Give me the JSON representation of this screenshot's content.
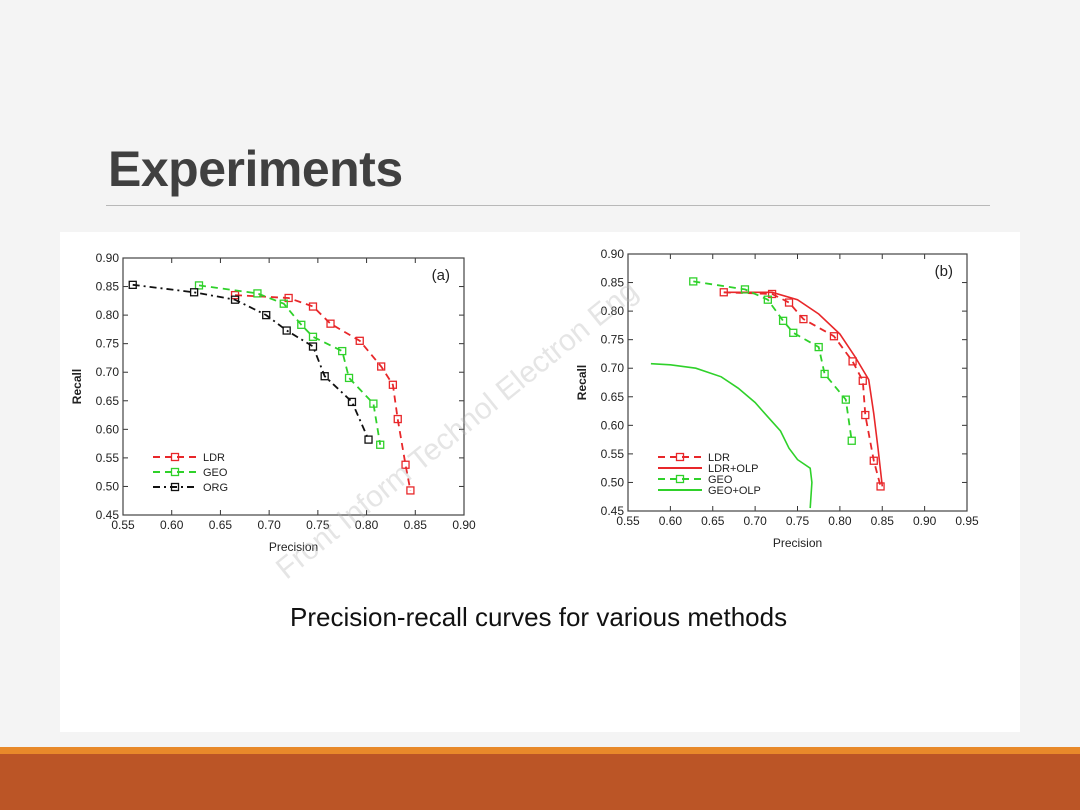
{
  "slide": {
    "title": "Experiments",
    "caption": "Precision-recall curves for various methods",
    "watermark": "Front Inform Technol Electron Eng"
  },
  "colors": {
    "ldr": "#e8272a",
    "geo": "#2fd12a",
    "org": "#111111",
    "footer": "#bb5526",
    "footer_accent": "#e8892a"
  },
  "chart_data": [
    {
      "type": "line",
      "panel_label": "(a)",
      "xlabel": "Precision",
      "ylabel": "Recall",
      "xlim": [
        0.55,
        0.9
      ],
      "ylim": [
        0.45,
        0.9
      ],
      "xticks": [
        "0.55",
        "0.60",
        "0.65",
        "0.70",
        "0.75",
        "0.80",
        "0.85",
        "0.90"
      ],
      "yticks": [
        "0.45",
        "0.50",
        "0.55",
        "0.60",
        "0.65",
        "0.70",
        "0.75",
        "0.80",
        "0.85",
        "0.90"
      ],
      "legend_position": "bottom-left",
      "series": [
        {
          "name": "LDR",
          "color": "#e8272a",
          "dash": "dashed",
          "marker": "square",
          "x": [
            0.665,
            0.72,
            0.745,
            0.763,
            0.793,
            0.815,
            0.827,
            0.832,
            0.84,
            0.845
          ],
          "y": [
            0.835,
            0.83,
            0.815,
            0.785,
            0.755,
            0.71,
            0.678,
            0.618,
            0.538,
            0.493
          ]
        },
        {
          "name": "GEO",
          "color": "#2fd12a",
          "dash": "dashed",
          "marker": "square",
          "x": [
            0.628,
            0.688,
            0.715,
            0.733,
            0.745,
            0.775,
            0.782,
            0.807,
            0.814
          ],
          "y": [
            0.852,
            0.838,
            0.82,
            0.783,
            0.762,
            0.737,
            0.69,
            0.645,
            0.573
          ]
        },
        {
          "name": "ORG",
          "color": "#111111",
          "dash": "dashdot",
          "marker": "square",
          "x": [
            0.56,
            0.623,
            0.665,
            0.697,
            0.718,
            0.745,
            0.757,
            0.785,
            0.802
          ],
          "y": [
            0.853,
            0.84,
            0.827,
            0.8,
            0.773,
            0.745,
            0.693,
            0.648,
            0.582
          ]
        }
      ]
    },
    {
      "type": "line",
      "panel_label": "(b)",
      "xlabel": "Precision",
      "ylabel": "Recall",
      "xlim": [
        0.55,
        0.95
      ],
      "ylim": [
        0.45,
        0.9
      ],
      "xticks": [
        "0.55",
        "0.60",
        "0.65",
        "0.70",
        "0.75",
        "0.80",
        "0.85",
        "0.90",
        "0.95"
      ],
      "yticks": [
        "0.45",
        "0.50",
        "0.55",
        "0.60",
        "0.65",
        "0.70",
        "0.75",
        "0.80",
        "0.85",
        "0.90"
      ],
      "legend_position": "bottom-left",
      "series": [
        {
          "name": "LDR",
          "color": "#e8272a",
          "dash": "dashed",
          "marker": "square",
          "x": [
            0.663,
            0.72,
            0.74,
            0.757,
            0.793,
            0.815,
            0.827,
            0.83,
            0.84,
            0.848
          ],
          "y": [
            0.833,
            0.83,
            0.815,
            0.786,
            0.756,
            0.712,
            0.678,
            0.618,
            0.538,
            0.493
          ]
        },
        {
          "name": "LDR+OLP",
          "color": "#e8272a",
          "dash": "solid",
          "marker": "none",
          "x": [
            0.663,
            0.72,
            0.75,
            0.775,
            0.8,
            0.818,
            0.834,
            0.84,
            0.845,
            0.85
          ],
          "y": [
            0.833,
            0.833,
            0.82,
            0.795,
            0.76,
            0.72,
            0.68,
            0.62,
            0.56,
            0.493
          ]
        },
        {
          "name": "GEO",
          "color": "#2fd12a",
          "dash": "dashed",
          "marker": "square",
          "x": [
            0.627,
            0.688,
            0.715,
            0.733,
            0.745,
            0.775,
            0.782,
            0.807,
            0.814
          ],
          "y": [
            0.852,
            0.838,
            0.82,
            0.783,
            0.762,
            0.737,
            0.69,
            0.645,
            0.573
          ]
        },
        {
          "name": "GEO+OLP",
          "color": "#2fd12a",
          "dash": "solid",
          "marker": "none",
          "x": [
            0.577,
            0.6,
            0.63,
            0.66,
            0.68,
            0.7,
            0.715,
            0.73,
            0.74,
            0.75,
            0.765,
            0.767,
            0.765
          ],
          "y": [
            0.708,
            0.706,
            0.7,
            0.685,
            0.665,
            0.64,
            0.615,
            0.59,
            0.56,
            0.54,
            0.525,
            0.5,
            0.455
          ]
        }
      ]
    }
  ]
}
